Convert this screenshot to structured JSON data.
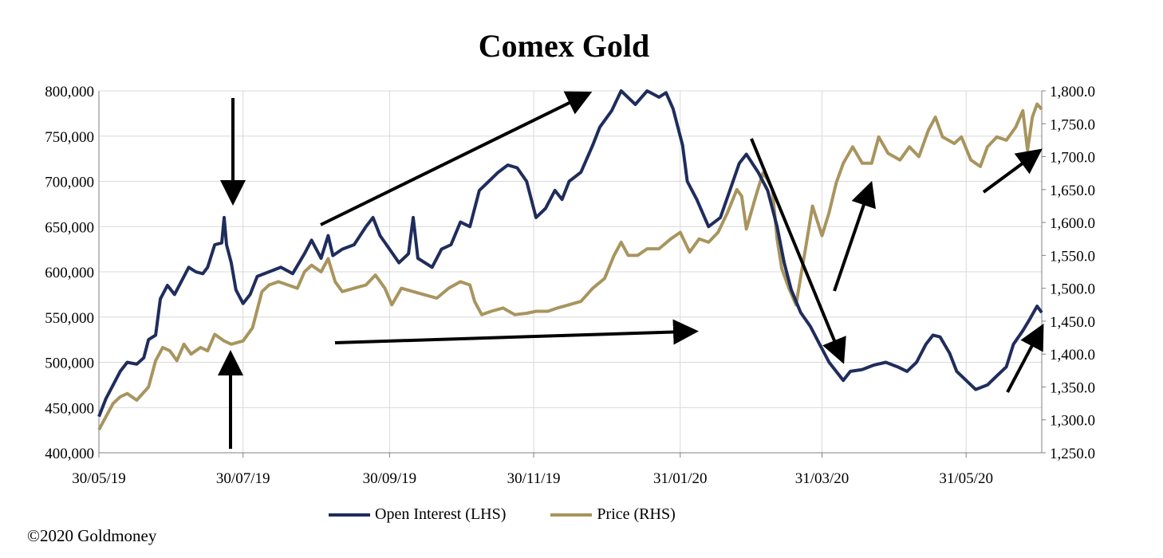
{
  "copyright": "©2020 Goldmoney",
  "colors": {
    "open_interest": "#1f2d5c",
    "price": "#a8955e",
    "grid": "#d9d9d9",
    "axis": "#808080",
    "arrow": "#000000"
  },
  "chart_data": {
    "type": "line",
    "title": "Comex Gold",
    "x_tick_labels": [
      "30/05/19",
      "30/07/19",
      "30/09/19",
      "30/11/19",
      "31/01/20",
      "31/03/20",
      "31/05/20"
    ],
    "x_tick_dates": [
      "2019-05-30",
      "2019-07-30",
      "2019-09-30",
      "2019-11-30",
      "2020-01-31",
      "2020-03-31",
      "2020-05-31"
    ],
    "x_range": [
      "2019-05-30",
      "2020-07-02"
    ],
    "y_left": {
      "min": 400000,
      "max": 800000,
      "ticks": [
        400000,
        450000,
        500000,
        550000,
        600000,
        650000,
        700000,
        750000,
        800000
      ],
      "tick_labels": [
        "400,000",
        "450,000",
        "500,000",
        "550,000",
        "600,000",
        "650,000",
        "700,000",
        "750,000",
        "800,000"
      ]
    },
    "y_right": {
      "min": 1250,
      "max": 1800,
      "ticks": [
        1250,
        1300,
        1350,
        1400,
        1450,
        1500,
        1550,
        1600,
        1650,
        1700,
        1750,
        1800
      ],
      "tick_labels": [
        "1,250.0",
        "1,300.0",
        "1,350.0",
        "1,400.0",
        "1,450.0",
        "1,500.0",
        "1,550.0",
        "1,600.0",
        "1,650.0",
        "1,700.0",
        "1,750.0",
        "1,800.0"
      ]
    },
    "grid": true,
    "legend_position": "bottom",
    "series": [
      {
        "name": "Open Interest (LHS)",
        "axis": "left",
        "points": [
          [
            "2019-05-30",
            440000
          ],
          [
            "2019-06-02",
            460000
          ],
          [
            "2019-06-05",
            475000
          ],
          [
            "2019-06-08",
            490000
          ],
          [
            "2019-06-11",
            500000
          ],
          [
            "2019-06-15",
            498000
          ],
          [
            "2019-06-18",
            505000
          ],
          [
            "2019-06-20",
            525000
          ],
          [
            "2019-06-23",
            530000
          ],
          [
            "2019-06-25",
            570000
          ],
          [
            "2019-06-28",
            585000
          ],
          [
            "2019-07-01",
            575000
          ],
          [
            "2019-07-04",
            590000
          ],
          [
            "2019-07-07",
            605000
          ],
          [
            "2019-07-10",
            600000
          ],
          [
            "2019-07-13",
            598000
          ],
          [
            "2019-07-15",
            605000
          ],
          [
            "2019-07-18",
            630000
          ],
          [
            "2019-07-21",
            632000
          ],
          [
            "2019-07-22",
            660000
          ],
          [
            "2019-07-23",
            630000
          ],
          [
            "2019-07-25",
            610000
          ],
          [
            "2019-07-27",
            580000
          ],
          [
            "2019-07-30",
            565000
          ],
          [
            "2019-08-02",
            575000
          ],
          [
            "2019-08-05",
            595000
          ],
          [
            "2019-08-10",
            600000
          ],
          [
            "2019-08-15",
            605000
          ],
          [
            "2019-08-20",
            598000
          ],
          [
            "2019-08-25",
            620000
          ],
          [
            "2019-08-28",
            635000
          ],
          [
            "2019-09-01",
            615000
          ],
          [
            "2019-09-04",
            640000
          ],
          [
            "2019-09-06",
            618000
          ],
          [
            "2019-09-10",
            625000
          ],
          [
            "2019-09-15",
            630000
          ],
          [
            "2019-09-20",
            650000
          ],
          [
            "2019-09-23",
            660000
          ],
          [
            "2019-09-26",
            640000
          ],
          [
            "2019-09-30",
            625000
          ],
          [
            "2019-10-04",
            610000
          ],
          [
            "2019-10-08",
            620000
          ],
          [
            "2019-10-10",
            660000
          ],
          [
            "2019-10-12",
            615000
          ],
          [
            "2019-10-18",
            605000
          ],
          [
            "2019-10-22",
            625000
          ],
          [
            "2019-10-26",
            630000
          ],
          [
            "2019-10-30",
            655000
          ],
          [
            "2019-11-03",
            650000
          ],
          [
            "2019-11-07",
            690000
          ],
          [
            "2019-11-11",
            700000
          ],
          [
            "2019-11-15",
            710000
          ],
          [
            "2019-11-19",
            718000
          ],
          [
            "2019-11-23",
            715000
          ],
          [
            "2019-11-27",
            700000
          ],
          [
            "2019-12-01",
            660000
          ],
          [
            "2019-12-05",
            670000
          ],
          [
            "2019-12-09",
            690000
          ],
          [
            "2019-12-12",
            680000
          ],
          [
            "2019-12-15",
            700000
          ],
          [
            "2019-12-20",
            710000
          ],
          [
            "2019-12-25",
            740000
          ],
          [
            "2019-12-28",
            760000
          ],
          [
            "2020-01-02",
            778000
          ],
          [
            "2020-01-06",
            800000
          ],
          [
            "2020-01-12",
            785000
          ],
          [
            "2020-01-17",
            800000
          ],
          [
            "2020-01-22",
            793000
          ],
          [
            "2020-01-25",
            798000
          ],
          [
            "2020-01-28",
            780000
          ],
          [
            "2020-02-01",
            740000
          ],
          [
            "2020-02-03",
            700000
          ],
          [
            "2020-02-07",
            680000
          ],
          [
            "2020-02-12",
            650000
          ],
          [
            "2020-02-17",
            660000
          ],
          [
            "2020-02-21",
            690000
          ],
          [
            "2020-02-25",
            720000
          ],
          [
            "2020-02-28",
            730000
          ],
          [
            "2020-03-04",
            710000
          ],
          [
            "2020-03-08",
            690000
          ],
          [
            "2020-03-12",
            650000
          ],
          [
            "2020-03-15",
            610000
          ],
          [
            "2020-03-18",
            580000
          ],
          [
            "2020-03-22",
            555000
          ],
          [
            "2020-03-26",
            540000
          ],
          [
            "2020-03-30",
            520000
          ],
          [
            "2020-04-03",
            500000
          ],
          [
            "2020-04-06",
            490000
          ],
          [
            "2020-04-09",
            480000
          ],
          [
            "2020-04-12",
            490000
          ],
          [
            "2020-04-17",
            492000
          ],
          [
            "2020-04-22",
            497000
          ],
          [
            "2020-04-27",
            500000
          ],
          [
            "2020-05-02",
            495000
          ],
          [
            "2020-05-06",
            490000
          ],
          [
            "2020-05-10",
            500000
          ],
          [
            "2020-05-14",
            520000
          ],
          [
            "2020-05-17",
            530000
          ],
          [
            "2020-05-20",
            528000
          ],
          [
            "2020-05-24",
            510000
          ],
          [
            "2020-05-27",
            490000
          ],
          [
            "2020-05-31",
            480000
          ],
          [
            "2020-06-04",
            470000
          ],
          [
            "2020-06-09",
            475000
          ],
          [
            "2020-06-13",
            485000
          ],
          [
            "2020-06-17",
            495000
          ],
          [
            "2020-06-20",
            520000
          ],
          [
            "2020-06-24",
            535000
          ],
          [
            "2020-06-27",
            548000
          ],
          [
            "2020-06-30",
            562000
          ],
          [
            "2020-07-02",
            555000
          ]
        ]
      },
      {
        "name": "Price (RHS)",
        "axis": "right",
        "points": [
          [
            "2019-05-30",
            1285
          ],
          [
            "2019-06-02",
            1305
          ],
          [
            "2019-06-05",
            1325
          ],
          [
            "2019-06-08",
            1335
          ],
          [
            "2019-06-11",
            1340
          ],
          [
            "2019-06-15",
            1330
          ],
          [
            "2019-06-20",
            1350
          ],
          [
            "2019-06-23",
            1390
          ],
          [
            "2019-06-26",
            1410
          ],
          [
            "2019-06-29",
            1405
          ],
          [
            "2019-07-02",
            1390
          ],
          [
            "2019-07-05",
            1415
          ],
          [
            "2019-07-08",
            1400
          ],
          [
            "2019-07-12",
            1410
          ],
          [
            "2019-07-15",
            1405
          ],
          [
            "2019-07-18",
            1430
          ],
          [
            "2019-07-22",
            1420
          ],
          [
            "2019-07-25",
            1415
          ],
          [
            "2019-07-30",
            1420
          ],
          [
            "2019-08-03",
            1440
          ],
          [
            "2019-08-07",
            1495
          ],
          [
            "2019-08-10",
            1505
          ],
          [
            "2019-08-14",
            1510
          ],
          [
            "2019-08-18",
            1505
          ],
          [
            "2019-08-22",
            1500
          ],
          [
            "2019-08-25",
            1525
          ],
          [
            "2019-08-28",
            1535
          ],
          [
            "2019-09-01",
            1525
          ],
          [
            "2019-09-04",
            1545
          ],
          [
            "2019-09-07",
            1510
          ],
          [
            "2019-09-10",
            1495
          ],
          [
            "2019-09-15",
            1500
          ],
          [
            "2019-09-20",
            1505
          ],
          [
            "2019-09-24",
            1520
          ],
          [
            "2019-09-28",
            1500
          ],
          [
            "2019-10-01",
            1475
          ],
          [
            "2019-10-05",
            1500
          ],
          [
            "2019-10-10",
            1495
          ],
          [
            "2019-10-15",
            1490
          ],
          [
            "2019-10-20",
            1485
          ],
          [
            "2019-10-25",
            1500
          ],
          [
            "2019-10-30",
            1510
          ],
          [
            "2019-11-03",
            1505
          ],
          [
            "2019-11-05",
            1480
          ],
          [
            "2019-11-08",
            1460
          ],
          [
            "2019-11-12",
            1465
          ],
          [
            "2019-11-17",
            1470
          ],
          [
            "2019-11-22",
            1460
          ],
          [
            "2019-11-27",
            1462
          ],
          [
            "2019-12-01",
            1465
          ],
          [
            "2019-12-06",
            1465
          ],
          [
            "2019-12-10",
            1470
          ],
          [
            "2019-12-15",
            1475
          ],
          [
            "2019-12-20",
            1480
          ],
          [
            "2019-12-25",
            1500
          ],
          [
            "2019-12-30",
            1515
          ],
          [
            "2020-01-03",
            1550
          ],
          [
            "2020-01-06",
            1570
          ],
          [
            "2020-01-09",
            1550
          ],
          [
            "2020-01-13",
            1550
          ],
          [
            "2020-01-17",
            1560
          ],
          [
            "2020-01-22",
            1560
          ],
          [
            "2020-01-27",
            1575
          ],
          [
            "2020-01-31",
            1585
          ],
          [
            "2020-02-04",
            1555
          ],
          [
            "2020-02-08",
            1575
          ],
          [
            "2020-02-12",
            1570
          ],
          [
            "2020-02-16",
            1585
          ],
          [
            "2020-02-20",
            1615
          ],
          [
            "2020-02-24",
            1650
          ],
          [
            "2020-02-26",
            1640
          ],
          [
            "2020-02-28",
            1590
          ],
          [
            "2020-03-03",
            1640
          ],
          [
            "2020-03-06",
            1675
          ],
          [
            "2020-03-08",
            1665
          ],
          [
            "2020-03-10",
            1650
          ],
          [
            "2020-03-12",
            1575
          ],
          [
            "2020-03-14",
            1530
          ],
          [
            "2020-03-17",
            1500
          ],
          [
            "2020-03-20",
            1475
          ],
          [
            "2020-03-24",
            1560
          ],
          [
            "2020-03-27",
            1625
          ],
          [
            "2020-03-31",
            1580
          ],
          [
            "2020-04-03",
            1615
          ],
          [
            "2020-04-06",
            1660
          ],
          [
            "2020-04-09",
            1690
          ],
          [
            "2020-04-13",
            1715
          ],
          [
            "2020-04-17",
            1690
          ],
          [
            "2020-04-21",
            1690
          ],
          [
            "2020-04-24",
            1730
          ],
          [
            "2020-04-28",
            1705
          ],
          [
            "2020-05-03",
            1695
          ],
          [
            "2020-05-07",
            1715
          ],
          [
            "2020-05-11",
            1700
          ],
          [
            "2020-05-15",
            1740
          ],
          [
            "2020-05-18",
            1760
          ],
          [
            "2020-05-21",
            1730
          ],
          [
            "2020-05-26",
            1720
          ],
          [
            "2020-05-29",
            1730
          ],
          [
            "2020-06-02",
            1695
          ],
          [
            "2020-06-06",
            1685
          ],
          [
            "2020-06-09",
            1715
          ],
          [
            "2020-06-13",
            1730
          ],
          [
            "2020-06-17",
            1725
          ],
          [
            "2020-06-21",
            1745
          ],
          [
            "2020-06-24",
            1770
          ],
          [
            "2020-06-26",
            1710
          ],
          [
            "2020-06-28",
            1760
          ],
          [
            "2020-06-30",
            1780
          ],
          [
            "2020-07-02",
            1772
          ]
        ]
      }
    ]
  }
}
